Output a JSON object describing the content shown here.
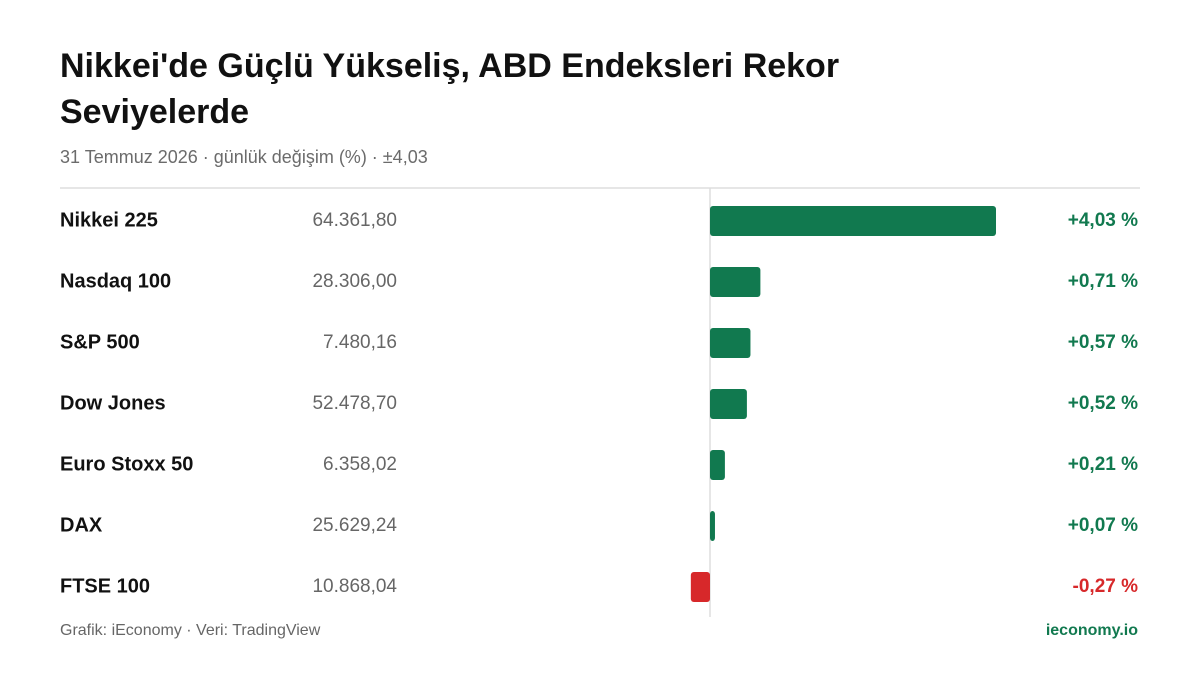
{
  "chart_data": {
    "type": "bar",
    "orientation": "horizontal",
    "title": "Nikkei'de Güçlü Yükseliş, ABD Endeksleri Rekor Seviyelerde",
    "subtitle": "31 Temmuz 2026 · günlük değişim (%) · ±4,03",
    "categories": [
      "Nikkei 225",
      "Nasdaq 100",
      "S&P 500",
      "Dow Jones",
      "Euro Stoxx 50",
      "DAX",
      "FTSE 100"
    ],
    "prices": [
      "64.361,80",
      "28.306,00",
      "7.480,16",
      "52.478,70",
      "6.358,02",
      "25.629,24",
      "10.868,04"
    ],
    "values": [
      4.03,
      0.71,
      0.57,
      0.52,
      0.21,
      0.07,
      -0.27
    ],
    "value_labels": [
      "+4,03 %",
      "+0,71 %",
      "+0,57 %",
      "+0,52 %",
      "+0,21 %",
      "+0,07 %",
      "-0,27 %"
    ],
    "xlim": [
      -4.03,
      4.03
    ],
    "color": "#11794f",
    "negative_color": "#d7282a",
    "source": "Grafik: iEconomy · Veri: TradingView",
    "brand": "ieconomy.io"
  }
}
